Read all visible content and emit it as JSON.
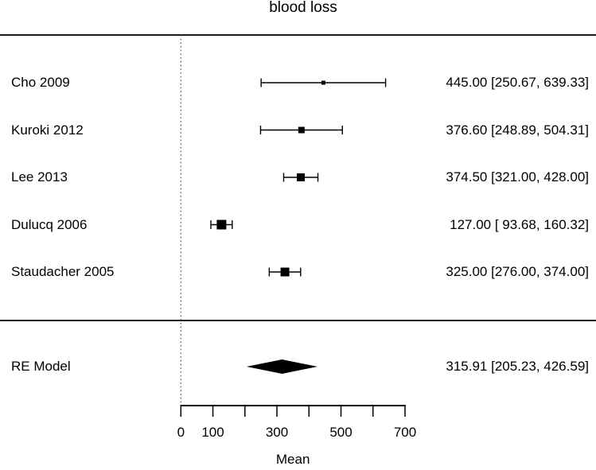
{
  "figure": {
    "title": "blood loss",
    "xlabel": "Mean"
  },
  "chart_data": {
    "type": "forest",
    "title": "blood loss",
    "xlabel": "Mean",
    "xlim": [
      0,
      700
    ],
    "reference_line_x": 0,
    "x_ticks": [
      {
        "value": 0,
        "label": "0"
      },
      {
        "value": 100,
        "label": "100"
      },
      {
        "value": 200,
        "label": ""
      },
      {
        "value": 300,
        "label": "300"
      },
      {
        "value": 400,
        "label": ""
      },
      {
        "value": 500,
        "label": "500"
      },
      {
        "value": 600,
        "label": ""
      },
      {
        "value": 700,
        "label": "700"
      }
    ],
    "studies": [
      {
        "label": "Cho 2009",
        "mean": 445.0,
        "ci_lower": 250.67,
        "ci_upper": 639.33,
        "annotation": "445.00 [250.67, 639.33]",
        "marker_size": 5
      },
      {
        "label": "Kuroki 2012",
        "mean": 376.6,
        "ci_lower": 248.89,
        "ci_upper": 504.31,
        "annotation": "376.60 [248.89, 504.31]",
        "marker_size": 8
      },
      {
        "label": "Lee 2013",
        "mean": 374.5,
        "ci_lower": 321.0,
        "ci_upper": 428.0,
        "annotation": "374.50 [321.00, 428.00]",
        "marker_size": 10
      },
      {
        "label": "Dulucq 2006",
        "mean": 127.0,
        "ci_lower": 93.68,
        "ci_upper": 160.32,
        "annotation": "127.00 [ 93.68, 160.32]",
        "marker_size": 12
      },
      {
        "label": "Staudacher 2005",
        "mean": 325.0,
        "ci_lower": 276.0,
        "ci_upper": 374.0,
        "annotation": "325.00 [276.00, 374.00]",
        "marker_size": 11
      }
    ],
    "summary": {
      "label": "RE Model",
      "mean": 315.91,
      "ci_lower": 205.23,
      "ci_upper": 426.59,
      "annotation": "315.91 [205.23, 426.59]"
    },
    "colors": {
      "foreground": "#000000",
      "background": "#ffffff",
      "reference_line": "#4d4d4d",
      "separator": "#1c1c1c"
    }
  }
}
